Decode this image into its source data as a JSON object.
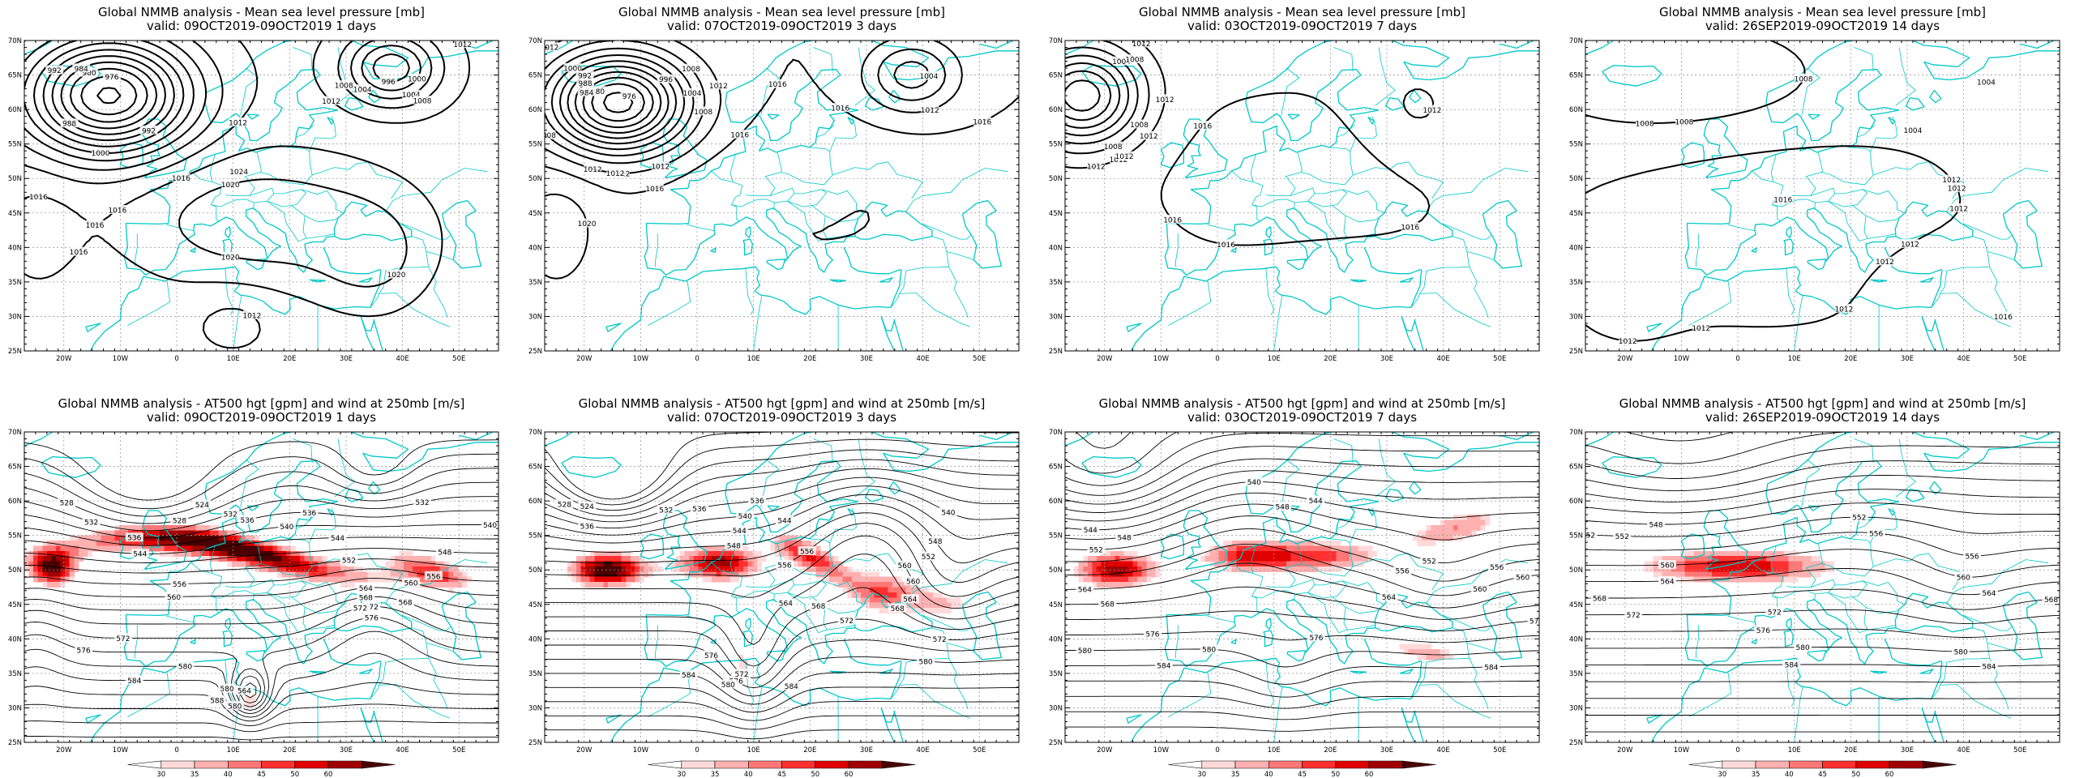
{
  "panels": [
    {
      "title": "Global NMMB analysis - Mean sea level pressure [mb]",
      "valid": "valid: 09OCT2019-09OCT2019   1 days",
      "kind": "mslp",
      "lead": 1
    },
    {
      "title": "Global NMMB analysis - Mean sea level pressure [mb]",
      "valid": "valid: 07OCT2019-09OCT2019   3 days",
      "kind": "mslp",
      "lead": 3
    },
    {
      "title": "Global NMMB analysis - Mean sea level pressure [mb]",
      "valid": "valid: 03OCT2019-09OCT2019   7 days",
      "kind": "mslp",
      "lead": 7
    },
    {
      "title": "Global NMMB analysis - Mean sea level pressure [mb]",
      "valid": "valid: 26SEP2019-09OCT2019   14 days",
      "kind": "mslp",
      "lead": 14
    },
    {
      "title": "Global NMMB analysis - AT500 hgt [gpm] and wind at 250mb [m/s]",
      "valid": "valid: 09OCT2019-09OCT2019   1 days",
      "kind": "z500",
      "lead": 1
    },
    {
      "title": "Global NMMB analysis - AT500 hgt [gpm] and wind at 250mb [m/s]",
      "valid": "valid: 07OCT2019-09OCT2019   3 days",
      "kind": "z500",
      "lead": 3
    },
    {
      "title": "Global NMMB analysis - AT500 hgt [gpm] and wind at 250mb [m/s]",
      "valid": "valid: 03OCT2019-09OCT2019   7 days",
      "kind": "z500",
      "lead": 7
    },
    {
      "title": "Global NMMB analysis - AT500 hgt [gpm] and wind at 250mb [m/s]",
      "valid": "valid: 26SEP2019-09OCT2019   14 days",
      "kind": "z500",
      "lead": 14
    }
  ],
  "axes": {
    "lon_labels": [
      "20W",
      "10W",
      "0",
      "10E",
      "20E",
      "30E",
      "40E",
      "50E"
    ],
    "lon_values": [
      -20,
      -10,
      0,
      10,
      20,
      30,
      40,
      50
    ],
    "lat_labels": [
      "70N",
      "65N",
      "60N",
      "55N",
      "50N",
      "45N",
      "40N",
      "35N",
      "30N",
      "25N"
    ],
    "lat_values": [
      70,
      65,
      60,
      55,
      50,
      45,
      40,
      35,
      30,
      25
    ],
    "lon_range": [
      -27,
      57
    ],
    "lat_range": [
      25,
      70
    ]
  },
  "colorbar": {
    "labels": [
      "30",
      "35",
      "40",
      "45",
      "50",
      "60"
    ],
    "colors": [
      "#ffffff",
      "#ffdada",
      "#ffb0b0",
      "#ff7777",
      "#ff3030",
      "#e00000",
      "#a00000",
      "#4a0000"
    ]
  },
  "contour_labels": {
    "mslp": [
      [
        "1000",
        "988",
        "992",
        "976",
        "980",
        "984",
        "992",
        "996",
        "1004",
        "1000",
        "1008",
        "1012",
        "1016",
        "1020",
        "1024",
        "1016",
        "1012",
        "1016",
        "1020",
        "1016",
        "1020",
        "1012",
        "1016",
        "1004",
        "1008",
        "1012"
      ],
      [
        "1012",
        "976",
        "980",
        "984",
        "988",
        "992",
        "996",
        "1000",
        "1004",
        "1008",
        "1012",
        "1016",
        "1020",
        "1016",
        "1012",
        "1016",
        "1012",
        "1012",
        "1012",
        "1016",
        "1004",
        "1008",
        "1008",
        "1012",
        "1016"
      ],
      [
        "1016",
        "1012",
        "1008",
        "1004",
        "1008",
        "1012",
        "1016",
        "1016",
        "1012",
        "1012",
        "1012",
        "1012",
        "1008",
        "1012",
        "1016"
      ],
      [
        "1012",
        "1008",
        "1008",
        "1012",
        "1004",
        "1004",
        "1008",
        "1012",
        "1016",
        "1012",
        "1012",
        "1016",
        "1012",
        "1012",
        "1012"
      ]
    ],
    "z500": [
      [
        "536",
        "532",
        "528",
        "524",
        "528",
        "532",
        "536",
        "540",
        "544",
        "548",
        "552",
        "556",
        "560",
        "564",
        "568",
        "572",
        "576",
        "580",
        "584",
        "588",
        "572",
        "576",
        "580",
        "536",
        "532",
        "540",
        "544",
        "556",
        "560",
        "564",
        "568",
        "572",
        "580"
      ],
      [
        "536",
        "524",
        "528",
        "532",
        "536",
        "540",
        "544",
        "548",
        "552",
        "556",
        "560",
        "564",
        "568",
        "572",
        "576",
        "580",
        "584",
        "576",
        "572",
        "580",
        "584",
        "536",
        "540",
        "544",
        "548",
        "556",
        "560",
        "564",
        "568",
        "572"
      ],
      [
        "544",
        "548",
        "552",
        "556",
        "560",
        "564",
        "568",
        "572",
        "576",
        "580",
        "584",
        "540",
        "544",
        "548",
        "552",
        "556",
        "560",
        "564",
        "576",
        "580",
        "584"
      ],
      [
        "552",
        "548",
        "552",
        "556",
        "560",
        "564",
        "568",
        "572",
        "576",
        "580",
        "584",
        "552",
        "556",
        "560",
        "564",
        "568",
        "572",
        "580",
        "584"
      ]
    ]
  }
}
